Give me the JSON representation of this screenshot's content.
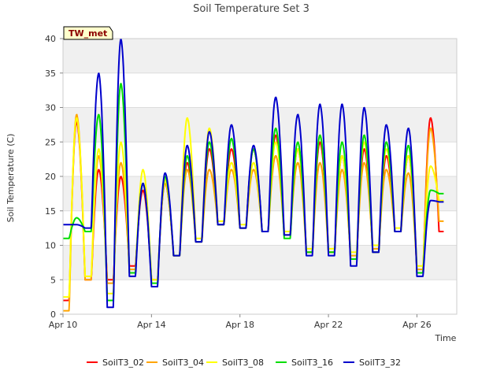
{
  "chart_data": {
    "type": "line",
    "title": "Soil Temperature Set 3",
    "xlabel": "Time",
    "ylabel": "Soil Temperature (C)",
    "ylim": [
      0,
      40
    ],
    "yticks": [
      0,
      5,
      10,
      15,
      20,
      25,
      30,
      35,
      40
    ],
    "xlim": [
      "2024-04-10",
      "2024-04-27.8"
    ],
    "xticks": [
      {
        "date": "2024-04-10",
        "label": "Apr 10"
      },
      {
        "date": "2024-04-14",
        "label": "Apr 14"
      },
      {
        "date": "2024-04-18",
        "label": "Apr 18"
      },
      {
        "date": "2024-04-22",
        "label": "Apr 22"
      },
      {
        "date": "2024-04-26",
        "label": "Apr 26"
      }
    ],
    "grid": true,
    "legend_position": "bottom",
    "tag": "TW_met",
    "series": [
      {
        "name": "SoilT3_02",
        "color": "#ff0000"
      },
      {
        "name": "SoilT3_04",
        "color": "#ffa500"
      },
      {
        "name": "SoilT3_08",
        "color": "#ffff00"
      },
      {
        "name": "SoilT3_16",
        "color": "#00dd00"
      },
      {
        "name": "SoilT3_32",
        "color": "#0000cc"
      }
    ],
    "daily": [
      {
        "day": "Apr 10",
        "min": {
          "SoilT3_02": 2.0,
          "SoilT3_04": 0.5,
          "SoilT3_08": 2.5,
          "SoilT3_16": 11.0,
          "SoilT3_32": 13.0
        },
        "max": {
          "SoilT3_02": 28.0,
          "SoilT3_04": 29.0,
          "SoilT3_08": 28.5,
          "SoilT3_16": 14.0,
          "SoilT3_32": 13.0
        }
      },
      {
        "day": "Apr 11",
        "min": {
          "SoilT3_02": 5.0,
          "SoilT3_04": 5.0,
          "SoilT3_08": 5.5,
          "SoilT3_16": 12.0,
          "SoilT3_32": 12.5
        },
        "max": {
          "SoilT3_02": 21.0,
          "SoilT3_04": 23.0,
          "SoilT3_08": 24.0,
          "SoilT3_16": 29.0,
          "SoilT3_32": 35.0
        }
      },
      {
        "day": "Apr 12",
        "min": {
          "SoilT3_02": 5.0,
          "SoilT3_04": 4.5,
          "SoilT3_08": 3.0,
          "SoilT3_16": 2.0,
          "SoilT3_32": 1.0
        },
        "max": {
          "SoilT3_02": 20.0,
          "SoilT3_04": 22.0,
          "SoilT3_08": 25.0,
          "SoilT3_16": 33.5,
          "SoilT3_32": 40.0
        }
      },
      {
        "day": "Apr 13",
        "min": {
          "SoilT3_02": 7.0,
          "SoilT3_04": 6.5,
          "SoilT3_08": 6.0,
          "SoilT3_16": 6.0,
          "SoilT3_32": 5.5
        },
        "max": {
          "SoilT3_02": 18.0,
          "SoilT3_04": 19.0,
          "SoilT3_08": 21.0,
          "SoilT3_16": 19.0,
          "SoilT3_32": 19.0
        }
      },
      {
        "day": "Apr 14",
        "min": {
          "SoilT3_02": 5.0,
          "SoilT3_04": 5.0,
          "SoilT3_08": 5.0,
          "SoilT3_16": 4.5,
          "SoilT3_32": 4.0
        },
        "max": {
          "SoilT3_02": 19.0,
          "SoilT3_04": 19.0,
          "SoilT3_08": 19.5,
          "SoilT3_16": 20.0,
          "SoilT3_32": 20.5
        }
      },
      {
        "day": "Apr 15",
        "min": {
          "SoilT3_02": 8.5,
          "SoilT3_04": 8.5,
          "SoilT3_08": 8.5,
          "SoilT3_16": 8.5,
          "SoilT3_32": 8.5
        },
        "max": {
          "SoilT3_02": 22.0,
          "SoilT3_04": 21.0,
          "SoilT3_08": 28.5,
          "SoilT3_16": 23.0,
          "SoilT3_32": 24.5
        }
      },
      {
        "day": "Apr 16",
        "min": {
          "SoilT3_02": 10.5,
          "SoilT3_04": 10.5,
          "SoilT3_08": 11.0,
          "SoilT3_16": 10.5,
          "SoilT3_32": 10.5
        },
        "max": {
          "SoilT3_02": 24.0,
          "SoilT3_04": 21.0,
          "SoilT3_08": 27.0,
          "SoilT3_16": 25.0,
          "SoilT3_32": 26.5
        }
      },
      {
        "day": "Apr 17",
        "min": {
          "SoilT3_02": 13.0,
          "SoilT3_04": 13.0,
          "SoilT3_08": 13.5,
          "SoilT3_16": 13.0,
          "SoilT3_32": 13.0
        },
        "max": {
          "SoilT3_02": 24.0,
          "SoilT3_04": 21.0,
          "SoilT3_08": 22.0,
          "SoilT3_16": 25.5,
          "SoilT3_32": 27.5
        }
      },
      {
        "day": "Apr 18",
        "min": {
          "SoilT3_02": 12.5,
          "SoilT3_04": 12.5,
          "SoilT3_08": 13.0,
          "SoilT3_16": 12.5,
          "SoilT3_32": 12.5
        },
        "max": {
          "SoilT3_02": 24.0,
          "SoilT3_04": 21.0,
          "SoilT3_08": 22.0,
          "SoilT3_16": 24.0,
          "SoilT3_32": 24.5
        }
      },
      {
        "day": "Apr 19",
        "min": {
          "SoilT3_02": 12.0,
          "SoilT3_04": 12.0,
          "SoilT3_08": 12.0,
          "SoilT3_16": 12.0,
          "SoilT3_32": 12.0
        },
        "max": {
          "SoilT3_02": 26.0,
          "SoilT3_04": 23.0,
          "SoilT3_08": 25.0,
          "SoilT3_16": 27.0,
          "SoilT3_32": 31.5
        }
      },
      {
        "day": "Apr 20",
        "min": {
          "SoilT3_02": 11.5,
          "SoilT3_04": 11.5,
          "SoilT3_08": 12.0,
          "SoilT3_16": 11.0,
          "SoilT3_32": 11.5
        },
        "max": {
          "SoilT3_02": 24.0,
          "SoilT3_04": 22.0,
          "SoilT3_08": 24.0,
          "SoilT3_16": 25.0,
          "SoilT3_32": 29.0
        }
      },
      {
        "day": "Apr 21",
        "min": {
          "SoilT3_02": 9.0,
          "SoilT3_04": 9.0,
          "SoilT3_08": 9.5,
          "SoilT3_16": 9.0,
          "SoilT3_32": 8.5
        },
        "max": {
          "SoilT3_02": 25.0,
          "SoilT3_04": 22.0,
          "SoilT3_08": 26.0,
          "SoilT3_16": 26.0,
          "SoilT3_32": 30.5
        }
      },
      {
        "day": "Apr 22",
        "min": {
          "SoilT3_02": 9.0,
          "SoilT3_04": 9.0,
          "SoilT3_08": 9.5,
          "SoilT3_16": 9.0,
          "SoilT3_32": 8.5
        },
        "max": {
          "SoilT3_02": 23.0,
          "SoilT3_04": 21.0,
          "SoilT3_08": 23.0,
          "SoilT3_16": 25.0,
          "SoilT3_32": 30.5
        }
      },
      {
        "day": "Apr 23",
        "min": {
          "SoilT3_02": 8.0,
          "SoilT3_04": 8.5,
          "SoilT3_08": 9.0,
          "SoilT3_16": 8.0,
          "SoilT3_32": 7.0
        },
        "max": {
          "SoilT3_02": 24.0,
          "SoilT3_04": 22.0,
          "SoilT3_08": 25.0,
          "SoilT3_16": 26.0,
          "SoilT3_32": 30.0
        }
      },
      {
        "day": "Apr 24",
        "min": {
          "SoilT3_02": 9.0,
          "SoilT3_04": 9.5,
          "SoilT3_08": 10.0,
          "SoilT3_16": 9.0,
          "SoilT3_32": 9.0
        },
        "max": {
          "SoilT3_02": 23.0,
          "SoilT3_04": 21.0,
          "SoilT3_08": 24.0,
          "SoilT3_16": 25.0,
          "SoilT3_32": 27.5
        }
      },
      {
        "day": "Apr 25",
        "min": {
          "SoilT3_02": 12.0,
          "SoilT3_04": 12.0,
          "SoilT3_08": 12.5,
          "SoilT3_16": 12.0,
          "SoilT3_32": 12.0
        },
        "max": {
          "SoilT3_02": 23.0,
          "SoilT3_04": 20.5,
          "SoilT3_08": 23.0,
          "SoilT3_16": 24.5,
          "SoilT3_32": 27.0
        }
      },
      {
        "day": "Apr 26",
        "min": {
          "SoilT3_02": 6.0,
          "SoilT3_04": 6.5,
          "SoilT3_08": 7.0,
          "SoilT3_16": 6.0,
          "SoilT3_32": 5.5
        },
        "max": {
          "SoilT3_02": 28.5,
          "SoilT3_04": 27.0,
          "SoilT3_08": 21.5,
          "SoilT3_16": 18.0,
          "SoilT3_32": 16.5
        }
      },
      {
        "day": "Apr 27",
        "min": {
          "SoilT3_02": 12.0,
          "SoilT3_04": 13.5,
          "SoilT3_08": 16.5,
          "SoilT3_16": 17.5,
          "SoilT3_32": 16.3
        },
        "max": {
          "SoilT3_02": 28.5,
          "SoilT3_04": 27.0,
          "SoilT3_08": 21.5,
          "SoilT3_16": 18.0,
          "SoilT3_32": 16.5
        }
      }
    ]
  }
}
